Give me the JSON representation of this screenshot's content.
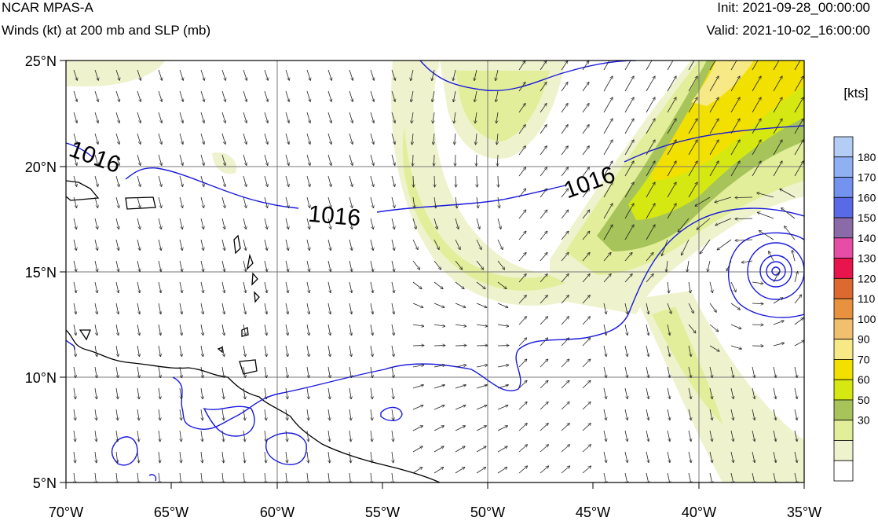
{
  "header": {
    "model_name": "NCAR MPAS-A",
    "field_description": "Winds (kt) at 200 mb and SLP (mb)",
    "init_time": "Init: 2021-09-28_00:00:00",
    "valid_time": "Valid: 2021-10-02_16:00:00"
  },
  "map": {
    "latitude_labels": [
      "25°N",
      "20°N",
      "15°N",
      "10°N",
      "5°N"
    ],
    "longitude_labels": [
      "70°W",
      "65°W",
      "60°W",
      "55°W",
      "50°W",
      "45°W",
      "40°W",
      "35°W"
    ],
    "slp_contour_labels": [
      "1016",
      "1016",
      "1016"
    ],
    "colors": {
      "slp_contour": "#1a1adc",
      "coastline": "#000000",
      "wind_vector": "#222222",
      "grid": "#7a7a7a"
    }
  },
  "colorbar": {
    "title": "[kts]",
    "levels": [
      {
        "label": "180",
        "color": "#b4cdf5"
      },
      {
        "label": "170",
        "color": "#8fb0f2"
      },
      {
        "label": "160",
        "color": "#7393ee"
      },
      {
        "label": "150",
        "color": "#5a6ae6"
      },
      {
        "label": "140",
        "color": "#8b6aa8"
      },
      {
        "label": "130",
        "color": "#e64ea6"
      },
      {
        "label": "120",
        "color": "#e8144c"
      },
      {
        "label": "110",
        "color": "#dc6a30"
      },
      {
        "label": "100",
        "color": "#e8913e"
      },
      {
        "label": "90",
        "color": "#f1c06e"
      },
      {
        "label": "70",
        "color": "#f7e986"
      },
      {
        "label": "60",
        "color": "#f2e000"
      },
      {
        "label": "50",
        "color": "#d6e812"
      },
      {
        "label": "30",
        "color": "#a6c45a"
      },
      {
        "label": "",
        "color": "#e2ee9a"
      },
      {
        "label": "",
        "color": "#eef3cd"
      },
      {
        "label": "",
        "color": "#ffffff"
      }
    ]
  }
}
